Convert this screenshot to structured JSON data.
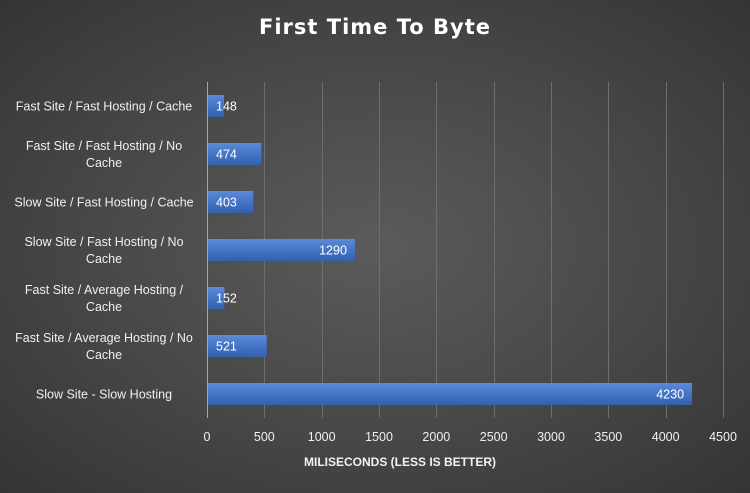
{
  "chart_data": {
    "type": "bar",
    "orientation": "horizontal",
    "title": "First Time To Byte",
    "xlabel": "MILISECONDS (LESS IS BETTER)",
    "ylabel": "",
    "categories": [
      [
        "Fast Site / Fast Hosting / Cache"
      ],
      [
        "Fast Site / Fast Hosting / No",
        "Cache"
      ],
      [
        "Slow Site / Fast Hosting / Cache"
      ],
      [
        "Slow Site / Fast Hosting / No",
        "Cache"
      ],
      [
        "Fast Site / Average Hosting /",
        "Cache"
      ],
      [
        "Fast Site / Average Hosting / No",
        "Cache"
      ],
      [
        "Slow Site - Slow Hosting"
      ]
    ],
    "values": [
      148,
      474,
      403,
      1290,
      152,
      521,
      4230
    ],
    "data_labels": [
      "148",
      "474",
      "403",
      "1290",
      "152",
      "521",
      "4230"
    ],
    "xlim": [
      0,
      4500
    ],
    "ticks": [
      0,
      500,
      1000,
      1500,
      2000,
      2500,
      3000,
      3500,
      4000,
      4500
    ],
    "tick_labels": [
      "0",
      "500",
      "1000",
      "1500",
      "2000",
      "2500",
      "3000",
      "3500",
      "4000",
      "4500"
    ],
    "grid": true,
    "legend": "none",
    "bar_color": "#4472c4"
  }
}
